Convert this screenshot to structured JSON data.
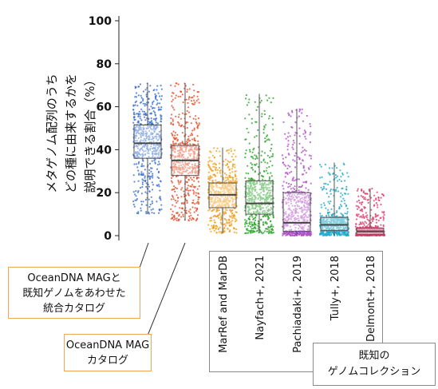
{
  "chart_data": {
    "type": "box+jitter",
    "ylabel_lines": [
      "メタゲノム配列のうち",
      "どの種に由来するかを",
      "説明できる割合（%）"
    ],
    "ylim": [
      0,
      100
    ],
    "yticks": [
      0,
      20,
      40,
      60,
      80,
      100
    ],
    "categories": [
      {
        "name": "OceanDNA MAG+known",
        "color": "#3a6fd0",
        "stats": {
          "min": 10,
          "q1": 36,
          "median": 43,
          "q3": 51.5,
          "max": 71
        }
      },
      {
        "name": "OceanDNA MAG",
        "color": "#e4502a",
        "stats": {
          "min": 7,
          "q1": 28,
          "median": 35,
          "q3": 42,
          "max": 71
        }
      },
      {
        "name": "MarRef and MarDB",
        "color": "#f0a020",
        "stats": {
          "min": 1,
          "q1": 13,
          "median": 19,
          "q3": 24.5,
          "max": 41
        }
      },
      {
        "name": "Nayfach+, 2021",
        "color": "#2aa42a",
        "stats": {
          "min": 1,
          "q1": 10,
          "median": 15,
          "q3": 25.5,
          "max": 66
        }
      },
      {
        "name": "Pachiadaki+, 2019",
        "color": "#b04ec8",
        "stats": {
          "min": 0,
          "q1": 2,
          "median": 6,
          "q3": 20,
          "max": 59
        }
      },
      {
        "name": "Tully+, 2018",
        "color": "#22a8c8",
        "stats": {
          "min": 0,
          "q1": 2.5,
          "median": 5,
          "q3": 8.5,
          "max": 34
        }
      },
      {
        "name": "Delmont+, 2018",
        "color": "#e23a6c",
        "stats": {
          "min": 0,
          "q1": 0.5,
          "median": 2,
          "q3": 3.5,
          "max": 22
        }
      }
    ],
    "xtick_labels": [
      "MarRef and MarDB",
      "Nayfach+, 2021",
      "Pachiadaki+, 2019",
      "Tully+, 2018",
      "Delmont+, 2018"
    ],
    "callouts": {
      "combined_lines": [
        "OceanDNA MAGと",
        "既知ゲノムをあわせた",
        "統合カタログ"
      ],
      "oceandna_lines": [
        "OceanDNA MAG",
        "カタログ"
      ]
    },
    "known_collection_lines": [
      "既知の",
      "ゲノムコレクション"
    ],
    "grid": false
  }
}
